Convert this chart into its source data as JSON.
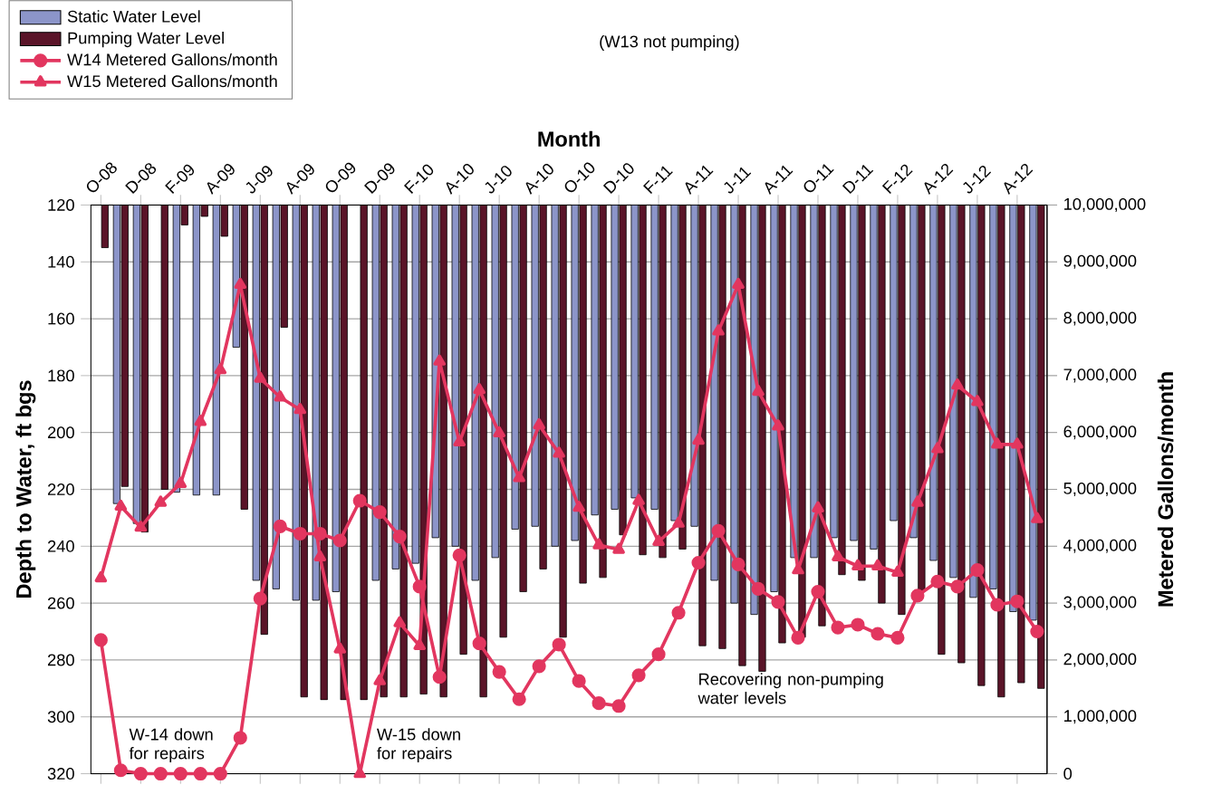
{
  "chart_data": {
    "type": "bar",
    "xlabel": "Month",
    "ylabel": "Depth to Water, ft bgs",
    "y2label": "Metered Gallons/month",
    "categories": [
      "O-08",
      null,
      "D-08",
      null,
      "F-09",
      null,
      "A-09",
      null,
      "J-09",
      null,
      "A-09",
      null,
      "O-09",
      null,
      "D-09",
      null,
      "F-10",
      null,
      "A-10",
      null,
      "J-10",
      null,
      "A-10",
      null,
      "O-10",
      null,
      "D-10",
      null,
      "F-11",
      null,
      "A-11",
      null,
      "J-11",
      null,
      "A-11",
      null,
      "O-11",
      null,
      "D-11",
      null,
      "F-12",
      null,
      "A-12",
      null,
      "J-12",
      null,
      "A-12",
      null
    ],
    "series": [
      {
        "name": "Static Water Level",
        "color": "#8c95c9",
        "values": [
          null,
          225,
          232,
          null,
          221,
          222,
          222,
          170,
          252,
          255,
          259,
          259,
          256,
          null,
          252,
          248,
          246,
          237,
          240,
          252,
          244,
          234,
          233,
          240,
          238,
          229,
          227,
          223,
          227,
          231,
          233,
          252,
          260,
          264,
          256,
          244,
          244,
          237,
          238,
          241,
          231,
          237,
          245,
          251,
          258,
          255,
          263,
          266
        ]
      },
      {
        "name": "Pumping Water Level",
        "color": "#5a1428",
        "values": [
          135,
          219,
          235,
          220,
          127,
          124,
          131,
          227,
          271,
          163,
          293,
          294,
          294,
          294,
          293,
          293,
          292,
          293,
          278,
          293,
          272,
          256,
          248,
          272,
          253,
          251,
          236,
          243,
          244,
          241,
          275,
          276,
          282,
          284,
          274,
          272,
          268,
          250,
          252,
          260,
          264,
          256,
          278,
          281,
          289,
          293,
          288,
          290
        ]
      },
      {
        "name": "W14 Metered Gallons/month",
        "type": "line",
        "axis": "y2",
        "marker": "circle",
        "color": "#e2365f",
        "values": [
          2350000,
          60000,
          0,
          0,
          0,
          0,
          0,
          630000,
          3080000,
          4350000,
          4220000,
          4220000,
          4100000,
          4800000,
          4600000,
          4170000,
          3290000,
          1700000,
          3840000,
          2290000,
          1790000,
          1310000,
          1890000,
          2270000,
          1630000,
          1240000,
          1190000,
          1730000,
          2100000,
          2830000,
          3710000,
          4270000,
          3680000,
          3250000,
          3020000,
          2390000,
          3200000,
          2570000,
          2620000,
          2460000,
          2390000,
          3130000,
          3380000,
          3290000,
          3580000,
          2970000,
          3030000,
          2500000
        ]
      },
      {
        "name": "W15 Metered Gallons/month",
        "type": "line",
        "axis": "y2",
        "marker": "triangle",
        "color": "#e2365f",
        "values": [
          3440000,
          4700000,
          4330000,
          4770000,
          5100000,
          6190000,
          7100000,
          8600000,
          6950000,
          6620000,
          6400000,
          3810000,
          2190000,
          0,
          1630000,
          2650000,
          2250000,
          7250000,
          5830000,
          6750000,
          5990000,
          5200000,
          6130000,
          5630000,
          4680000,
          4020000,
          3940000,
          4800000,
          4080000,
          4400000,
          5860000,
          7780000,
          8600000,
          6720000,
          6110000,
          3580000,
          4670000,
          3810000,
          3650000,
          3650000,
          3540000,
          4770000,
          5710000,
          6830000,
          6540000,
          5790000,
          5790000,
          4480000
        ]
      }
    ],
    "ylim": [
      320,
      120
    ],
    "yticks": [
      120,
      140,
      160,
      180,
      200,
      220,
      240,
      260,
      280,
      300,
      320
    ],
    "y2lim": [
      0,
      10000000
    ],
    "y2ticks": [
      0,
      {
        "value": 1000000,
        "label": "1,000,000"
      },
      {
        "value": 2000000,
        "label": "2,000,000"
      },
      {
        "value": 3000000,
        "label": "3,000,000"
      },
      {
        "value": 4000000,
        "label": "4,000,000"
      },
      {
        "value": 5000000,
        "label": "5,000,000"
      },
      {
        "value": 6000000,
        "label": "6,000,000"
      },
      {
        "value": 7000000,
        "label": "7,000,000"
      },
      {
        "value": 8000000,
        "label": "8,000,000"
      },
      {
        "value": 9000000,
        "label": "9,000,000"
      },
      {
        "value": 10000000,
        "label": "10,000,000"
      }
    ],
    "grid": "y",
    "legend": "top left",
    "annotations": [
      "(W13 not pumping)",
      "W-14 down for repairs",
      "W-15 down for repairs",
      "Recovering non-pumping water levels"
    ]
  }
}
